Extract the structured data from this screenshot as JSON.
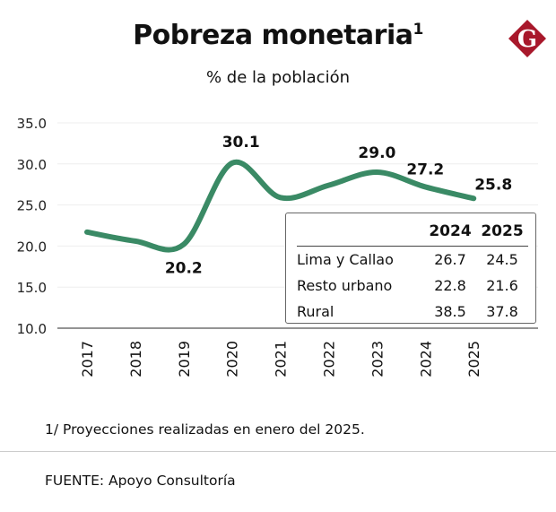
{
  "title": "Pobreza monetaria",
  "title_sup": "1",
  "subtitle": "% de la población",
  "logo_letter": "G",
  "colors": {
    "line": "#3a8a65",
    "logo": "#a8182b"
  },
  "chart_data": {
    "type": "line",
    "categories": [
      "2017",
      "2018",
      "2019",
      "2020",
      "2021",
      "2022",
      "2023",
      "2024",
      "2025"
    ],
    "series": [
      {
        "values": [
          21.7,
          20.6,
          20.2,
          30.1,
          25.9,
          27.4,
          29.0,
          27.2,
          25.8
        ]
      }
    ],
    "data_labels": [
      {
        "year": "2019",
        "text": "20.2"
      },
      {
        "year": "2020",
        "text": "30.1"
      },
      {
        "year": "2023",
        "text": "29.0"
      },
      {
        "year": "2024",
        "text": "27.2"
      },
      {
        "year": "2025",
        "text": "25.8"
      }
    ],
    "yticks": [
      "10.0",
      "15.0",
      "20.0",
      "25.0",
      "30.0",
      "35.0"
    ],
    "ylim": [
      10,
      35
    ],
    "grid": true
  },
  "table": {
    "headers": [
      "",
      "2024",
      "2025"
    ],
    "rows": [
      [
        "Lima y Callao",
        "26.7",
        "24.5"
      ],
      [
        "Resto urbano",
        "22.8",
        "21.6"
      ],
      [
        "Rural",
        "38.5",
        "37.8"
      ]
    ]
  },
  "footnote": "1/ Proyecciones realizadas en enero del 2025.",
  "source": "FUENTE: Apoyo Consultoría"
}
